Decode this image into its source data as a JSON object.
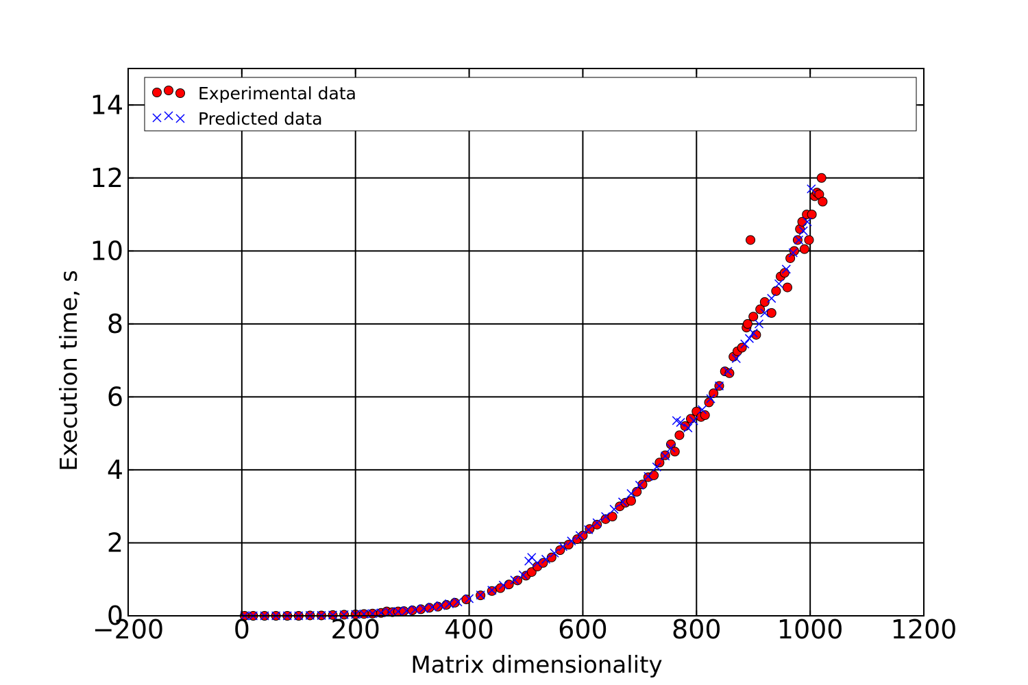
{
  "chart_data": {
    "type": "scatter",
    "xlabel": "Matrix dimensionality",
    "ylabel": "Execution time, s",
    "xlim": [
      -200,
      1200
    ],
    "ylim": [
      0,
      15
    ],
    "xticks": [
      -200,
      0,
      200,
      400,
      600,
      800,
      1000,
      1200
    ],
    "yticks": [
      0,
      2,
      4,
      6,
      8,
      10,
      12,
      14
    ],
    "xtick_labels": [
      "−200",
      "0",
      "200",
      "400",
      "600",
      "800",
      "1000",
      "1200"
    ],
    "ytick_labels": [
      "0",
      "2",
      "4",
      "6",
      "8",
      "10",
      "12",
      "14"
    ],
    "grid": true,
    "legend_position": "top",
    "series": [
      {
        "name": "Experimental data",
        "marker": "circle",
        "color": "#ff0000",
        "edge_color": "#000000",
        "points": [
          [
            5,
            0.0
          ],
          [
            20,
            0.0
          ],
          [
            40,
            0.0
          ],
          [
            60,
            0.0
          ],
          [
            80,
            0.0
          ],
          [
            100,
            0.0
          ],
          [
            120,
            0.01
          ],
          [
            140,
            0.01
          ],
          [
            160,
            0.02
          ],
          [
            180,
            0.03
          ],
          [
            200,
            0.04
          ],
          [
            215,
            0.05
          ],
          [
            230,
            0.06
          ],
          [
            245,
            0.08
          ],
          [
            255,
            0.12
          ],
          [
            265,
            0.1
          ],
          [
            275,
            0.12
          ],
          [
            285,
            0.13
          ],
          [
            300,
            0.15
          ],
          [
            315,
            0.18
          ],
          [
            330,
            0.22
          ],
          [
            345,
            0.25
          ],
          [
            360,
            0.3
          ],
          [
            375,
            0.36
          ],
          [
            395,
            0.45
          ],
          [
            420,
            0.56
          ],
          [
            440,
            0.68
          ],
          [
            455,
            0.76
          ],
          [
            470,
            0.86
          ],
          [
            485,
            0.97
          ],
          [
            500,
            1.1
          ],
          [
            510,
            1.2
          ],
          [
            520,
            1.35
          ],
          [
            530,
            1.45
          ],
          [
            545,
            1.6
          ],
          [
            560,
            1.8
          ],
          [
            575,
            1.95
          ],
          [
            590,
            2.1
          ],
          [
            600,
            2.2
          ],
          [
            612,
            2.38
          ],
          [
            625,
            2.5
          ],
          [
            640,
            2.65
          ],
          [
            652,
            2.72
          ],
          [
            665,
            3.0
          ],
          [
            675,
            3.1
          ],
          [
            685,
            3.15
          ],
          [
            695,
            3.4
          ],
          [
            705,
            3.6
          ],
          [
            715,
            3.8
          ],
          [
            725,
            3.85
          ],
          [
            735,
            4.2
          ],
          [
            745,
            4.4
          ],
          [
            755,
            4.7
          ],
          [
            762,
            4.5
          ],
          [
            770,
            4.95
          ],
          [
            780,
            5.2
          ],
          [
            790,
            5.4
          ],
          [
            800,
            5.6
          ],
          [
            808,
            5.45
          ],
          [
            815,
            5.5
          ],
          [
            822,
            5.85
          ],
          [
            830,
            6.1
          ],
          [
            840,
            6.3
          ],
          [
            850,
            6.7
          ],
          [
            858,
            6.65
          ],
          [
            865,
            7.1
          ],
          [
            872,
            7.25
          ],
          [
            880,
            7.35
          ],
          [
            888,
            7.9
          ],
          [
            890,
            8.0
          ],
          [
            895,
            10.3
          ],
          [
            900,
            8.2
          ],
          [
            905,
            7.7
          ],
          [
            912,
            8.4
          ],
          [
            920,
            8.6
          ],
          [
            932,
            8.3
          ],
          [
            940,
            8.9
          ],
          [
            948,
            9.3
          ],
          [
            955,
            9.4
          ],
          [
            960,
            9.0
          ],
          [
            965,
            9.8
          ],
          [
            972,
            10.0
          ],
          [
            978,
            10.3
          ],
          [
            982,
            10.6
          ],
          [
            986,
            10.8
          ],
          [
            990,
            10.05
          ],
          [
            994,
            11.0
          ],
          [
            998,
            10.3
          ],
          [
            1003,
            11.0
          ],
          [
            1008,
            11.5
          ],
          [
            1012,
            11.6
          ],
          [
            1016,
            11.55
          ],
          [
            1020,
            12.0
          ],
          [
            1022,
            11.35
          ]
        ]
      },
      {
        "name": "Predicted data",
        "marker": "x",
        "color": "#0000ff",
        "points": [
          [
            5,
            0.0
          ],
          [
            20,
            0.0
          ],
          [
            40,
            0.0
          ],
          [
            60,
            0.0
          ],
          [
            80,
            0.0
          ],
          [
            100,
            0.0
          ],
          [
            120,
            0.01
          ],
          [
            140,
            0.01
          ],
          [
            160,
            0.02
          ],
          [
            180,
            0.03
          ],
          [
            200,
            0.04
          ],
          [
            215,
            0.05
          ],
          [
            230,
            0.06
          ],
          [
            245,
            0.08
          ],
          [
            260,
            0.1
          ],
          [
            275,
            0.12
          ],
          [
            290,
            0.14
          ],
          [
            305,
            0.17
          ],
          [
            320,
            0.2
          ],
          [
            335,
            0.24
          ],
          [
            350,
            0.28
          ],
          [
            365,
            0.33
          ],
          [
            380,
            0.38
          ],
          [
            400,
            0.47
          ],
          [
            420,
            0.57
          ],
          [
            440,
            0.7
          ],
          [
            460,
            0.84
          ],
          [
            480,
            0.98
          ],
          [
            495,
            1.12
          ],
          [
            505,
            1.5
          ],
          [
            510,
            1.6
          ],
          [
            520,
            1.45
          ],
          [
            535,
            1.55
          ],
          [
            550,
            1.72
          ],
          [
            565,
            1.9
          ],
          [
            580,
            2.05
          ],
          [
            595,
            2.2
          ],
          [
            610,
            2.36
          ],
          [
            625,
            2.55
          ],
          [
            640,
            2.72
          ],
          [
            655,
            2.92
          ],
          [
            670,
            3.12
          ],
          [
            685,
            3.35
          ],
          [
            700,
            3.58
          ],
          [
            715,
            3.82
          ],
          [
            730,
            4.08
          ],
          [
            745,
            4.38
          ],
          [
            755,
            4.6
          ],
          [
            765,
            5.35
          ],
          [
            772,
            5.3
          ],
          [
            785,
            5.15
          ],
          [
            795,
            5.35
          ],
          [
            810,
            5.65
          ],
          [
            825,
            5.95
          ],
          [
            840,
            6.3
          ],
          [
            855,
            6.7
          ],
          [
            870,
            7.05
          ],
          [
            885,
            7.45
          ],
          [
            893,
            7.6
          ],
          [
            900,
            7.75
          ],
          [
            910,
            8.0
          ],
          [
            920,
            8.3
          ],
          [
            932,
            8.7
          ],
          [
            945,
            9.1
          ],
          [
            958,
            9.5
          ],
          [
            970,
            9.95
          ],
          [
            980,
            10.3
          ],
          [
            988,
            10.55
          ],
          [
            995,
            10.8
          ],
          [
            1002,
            11.7
          ]
        ]
      }
    ]
  }
}
